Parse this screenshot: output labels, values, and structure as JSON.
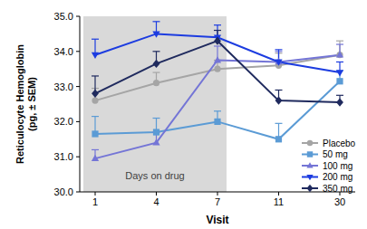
{
  "chart_data": {
    "type": "line",
    "x_label": "Visit",
    "y_label": "Reticulocyte Hemoglobin (pg, ± SEM)",
    "categories": [
      "1",
      "4",
      "7",
      "11",
      "30"
    ],
    "ylim": [
      30,
      35
    ],
    "yticks": [
      {
        "value": 30,
        "label": "30.0"
      },
      {
        "value": 31,
        "label": "31.0"
      },
      {
        "value": 32,
        "label": "32.0"
      },
      {
        "value": 33,
        "label": "33.0"
      },
      {
        "value": 34,
        "label": "34.0"
      },
      {
        "value": 35,
        "label": "35.0"
      }
    ],
    "legend": "right",
    "annotations": [
      {
        "text": "Days on drug",
        "from": "1",
        "to": "7"
      }
    ],
    "series": [
      {
        "name": "Placebo",
        "color": "#a5a5a5",
        "marker": "circle",
        "values": [
          32.6,
          33.1,
          33.5,
          33.6,
          33.9
        ],
        "errors": [
          0.35,
          0.3,
          0.25,
          0.35,
          0.4
        ]
      },
      {
        "name": "50 mg",
        "color": "#5b9bd5",
        "marker": "square",
        "values": [
          31.65,
          31.7,
          32.0,
          31.5,
          33.15
        ],
        "errors": [
          0.5,
          0.4,
          0.3,
          0.45,
          0.3
        ]
      },
      {
        "name": "100 mg",
        "color": "#7475d6",
        "marker": "triangle-up",
        "values": [
          30.95,
          31.4,
          33.75,
          33.7,
          33.9
        ],
        "errors": [
          0.25,
          0.3,
          0.4,
          0.3,
          0.3
        ]
      },
      {
        "name": "200 mg",
        "color": "#1c3ce0",
        "marker": "triangle-down",
        "values": [
          33.9,
          34.5,
          34.4,
          33.7,
          33.4
        ],
        "errors": [
          0.45,
          0.35,
          0.35,
          0.35,
          0.3
        ]
      },
      {
        "name": "350 mg",
        "color": "#1f2a5e",
        "marker": "diamond",
        "values": [
          32.8,
          33.65,
          34.3,
          32.6,
          32.55
        ],
        "errors": [
          0.5,
          0.35,
          0.3,
          0.3,
          0.2
        ]
      }
    ]
  }
}
